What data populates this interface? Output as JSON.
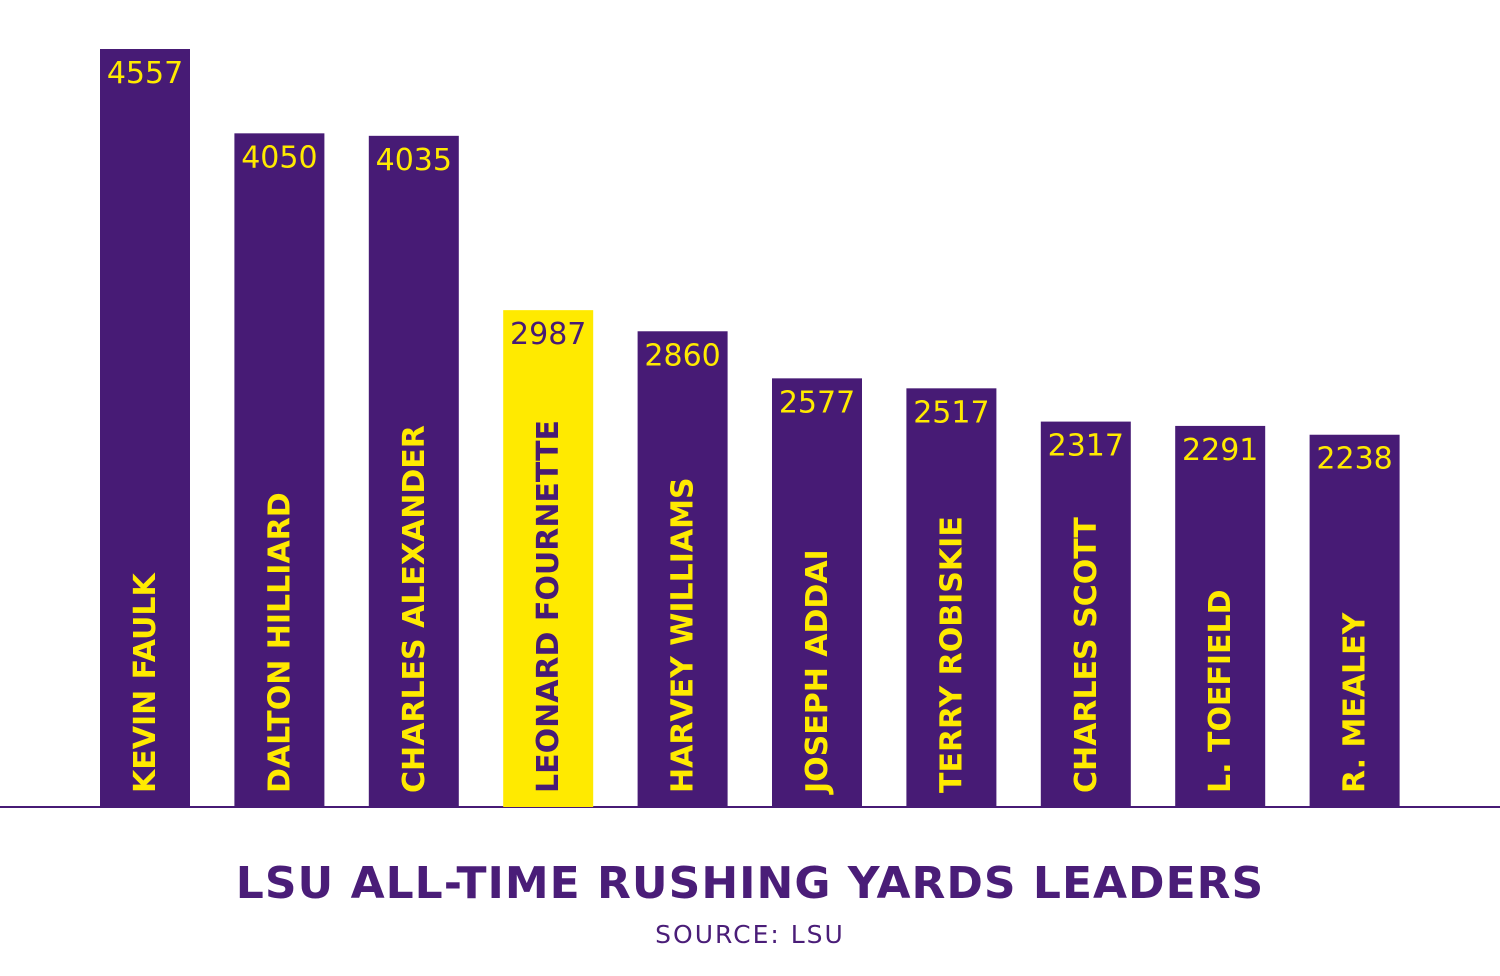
{
  "chart_data": {
    "type": "bar",
    "title": "LSU ALL-TIME RUSHING YARDS LEADERS",
    "subtitle": "SOURCE: LSU",
    "xlabel": "",
    "ylabel": "",
    "ylim": [
      0,
      4557
    ],
    "grid": false,
    "legend": "none",
    "categories": [
      "KEVIN FAULK",
      "DALTON HILLIARD",
      "CHARLES ALEXANDER",
      "LEONARD FOURNETTE",
      "HARVEY WILLIAMS",
      "JOSEPH ADDAI",
      "TERRY ROBISKIE",
      "CHARLES SCOTT",
      "L. TOEFIELD",
      "R. MEALEY"
    ],
    "values": [
      4557,
      4050,
      4035,
      2987,
      2860,
      2577,
      2517,
      2317,
      2291,
      2238
    ],
    "value_labels": [
      "4557",
      "4050",
      "4035",
      "2987",
      "2860",
      "2577",
      "2517",
      "2317",
      "2291",
      "2238"
    ],
    "highlight_category": "LEONARD FOURNETTE",
    "colors": {
      "bar": "#471b75",
      "highlight_bar": "#ffea00",
      "label_text": "#ffea00",
      "highlight_label_text": "#471b75",
      "baseline": "#471b75",
      "title_text": "#4a1d78"
    }
  }
}
